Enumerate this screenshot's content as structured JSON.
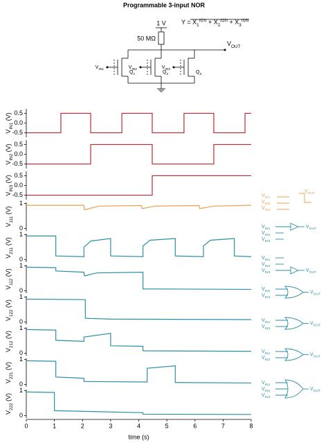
{
  "chart_data": {
    "type": "line",
    "title": "Programmable 3-input NOR",
    "circuit": {
      "supply": "1 V",
      "resistor": "50 MΩ",
      "output": [
        "V",
        "OUT"
      ],
      "equation": [
        "Y = ",
        "X",
        "1",
        "(Q1)",
        " + X",
        "2",
        "(Q2)",
        " + X",
        "3",
        "(Q3)"
      ],
      "inputs": [
        [
          "V",
          "IN1"
        ],
        [
          "V",
          "IN2"
        ],
        [
          "V",
          "IN3"
        ]
      ],
      "transistors": [
        [
          "Q",
          "1"
        ],
        [
          "Q",
          "2"
        ],
        [
          "Q",
          "3"
        ]
      ]
    },
    "x_label": "time (s)",
    "xlim": [
      0,
      8
    ],
    "xticks": [
      0,
      1,
      2,
      3,
      4,
      5,
      6,
      7,
      8
    ],
    "panels": [
      {
        "y_label": [
          "V",
          "IN1",
          " (V)"
        ],
        "ylim": [
          -0.8,
          0.8
        ],
        "yticks": [
          0.5,
          {
            "value": 0,
            "label": "0.0"
          },
          -0.5
        ],
        "series": [
          {
            "color": "#c0282d",
            "x": [
              0,
              1.23,
              1.23,
              2.29,
              2.29,
              3.4,
              3.4,
              4.48,
              4.48,
              5.61,
              5.61,
              6.67,
              6.67,
              7.78,
              7.78,
              8
            ],
            "values": [
              -0.5,
              -0.5,
              0.5,
              0.5,
              -0.5,
              -0.5,
              0.5,
              0.5,
              -0.5,
              -0.5,
              0.5,
              0.5,
              -0.5,
              -0.5,
              0.5,
              0.5
            ]
          }
        ]
      },
      {
        "y_label": [
          "V",
          "IN2",
          " (V)"
        ],
        "ylim": [
          -0.8,
          0.8
        ],
        "yticks": [
          0.5,
          {
            "value": 0,
            "label": "0.0"
          },
          -0.5
        ],
        "series": [
          {
            "color": "#c0282d",
            "x": [
              0,
              2.29,
              2.29,
              4.48,
              4.48,
              6.67,
              6.67,
              8
            ],
            "values": [
              -0.5,
              -0.5,
              0.5,
              0.5,
              -0.5,
              -0.5,
              0.5,
              0.5
            ]
          }
        ]
      },
      {
        "y_label": [
          "V",
          "IN3",
          " (V)"
        ],
        "ylim": [
          -0.8,
          0.8
        ],
        "yticks": [
          0.5,
          {
            "value": 0,
            "label": "0.0"
          },
          -0.5
        ],
        "series": [
          {
            "color": "#c0282d",
            "x": [
              0,
              4.48,
              4.48,
              8
            ],
            "values": [
              -0.5,
              -0.5,
              0.5,
              0.5
            ]
          }
        ]
      },
      {
        "y_label": [
          "V",
          "111",
          " (V)"
        ],
        "ylim": [
          -0.15,
          1.1
        ],
        "yticks": [
          0,
          1
        ],
        "series": [
          {
            "color": "#e8a04a",
            "x": [
              0,
              2.05,
              2.07,
              2.6,
              4.1,
              4.12,
              4.6,
              6.15,
              6.17,
              6.7,
              8
            ],
            "values": [
              0.93,
              0.93,
              0.75,
              0.9,
              0.92,
              0.8,
              0.9,
              0.92,
              0.8,
              0.9,
              0.93
            ]
          }
        ],
        "schematic": {
          "gate": "none",
          "inputs": [
            [
              "V",
              "IN1"
            ],
            [
              "V",
              "IN2"
            ],
            [
              "V",
              "IN3"
            ]
          ],
          "output": [
            "V",
            "OUT"
          ]
        }
      },
      {
        "y_label": [
          "V",
          "211",
          " (V)"
        ],
        "ylim": [
          -0.15,
          1.1
        ],
        "yticks": [
          0,
          1
        ],
        "series": [
          {
            "color": "#2b8ea6",
            "x": [
              0,
              1.05,
              1.05,
              2.05,
              2.05,
              2.3,
              3.0,
              3.0,
              4.15,
              4.15,
              4.4,
              5.3,
              5.3,
              6.3,
              6.3,
              6.55,
              7.4,
              7.4,
              8
            ],
            "values": [
              0.95,
              0.95,
              0.15,
              0.12,
              0.5,
              0.75,
              0.85,
              0.15,
              0.12,
              0.55,
              0.78,
              0.85,
              0.15,
              0.12,
              0.55,
              0.78,
              0.85,
              0.15,
              0.12
            ]
          }
        ],
        "schematic": {
          "gate": "buffer",
          "buffer_input": 0,
          "inputs": [
            [
              "V",
              "IN1"
            ],
            [
              "V",
              "IN2"
            ],
            [
              "V",
              "IN3"
            ]
          ],
          "output": [
            "V",
            "OUT"
          ]
        }
      },
      {
        "y_label": [
          "V",
          "112",
          " (V)"
        ],
        "ylim": [
          -0.15,
          1.1
        ],
        "yticks": [
          0,
          1
        ],
        "series": [
          {
            "color": "#2b8ea6",
            "x": [
              0,
              1.05,
              1.05,
              2.05,
              2.07,
              2.5,
              4.15,
              4.15,
              8
            ],
            "values": [
              0.95,
              0.93,
              0.8,
              0.75,
              0.6,
              0.72,
              0.75,
              0.08,
              0.06
            ]
          }
        ],
        "schematic": {
          "gate": "buffer",
          "buffer_input": 2,
          "inputs": [
            [
              "V",
              "IN1"
            ],
            [
              "V",
              "IN2"
            ],
            [
              "V",
              "IN3"
            ]
          ],
          "output": [
            "V",
            "OUT"
          ]
        }
      },
      {
        "y_label": [
          "V",
          "122",
          " (V)"
        ],
        "ylim": [
          -0.15,
          1.1
        ],
        "yticks": [
          0,
          1
        ],
        "series": [
          {
            "color": "#2b8ea6",
            "x": [
              0,
              2.1,
              2.1,
              3,
              8
            ],
            "values": [
              0.92,
              0.9,
              0.15,
              0.12,
              0.1
            ]
          }
        ],
        "schematic": {
          "gate": "or",
          "inputs": [
            [
              "V",
              "IN2"
            ],
            [
              "V",
              "IN3"
            ]
          ],
          "output": [
            "V",
            "OUT"
          ]
        }
      },
      {
        "y_label": [
          "V",
          "212",
          " (V)"
        ],
        "ylim": [
          -0.15,
          1.1
        ],
        "yticks": [
          0,
          1
        ],
        "series": [
          {
            "color": "#2b8ea6",
            "x": [
              0,
              1.05,
              1.05,
              2.05,
              2.05,
              3.0,
              3.0,
              4.15,
              4.15,
              8
            ],
            "values": [
              0.95,
              0.93,
              0.52,
              0.48,
              0.65,
              0.8,
              0.3,
              0.28,
              0.1,
              0.08
            ]
          }
        ],
        "schematic": {
          "gate": "or",
          "inputs": [
            [
              "V",
              "IN1"
            ],
            [
              "V",
              "IN3"
            ]
          ],
          "output": [
            "V",
            "OUT"
          ]
        }
      },
      {
        "y_label": [
          "V",
          "221",
          " (V)"
        ],
        "ylim": [
          -0.15,
          1.1
        ],
        "yticks": [
          0,
          1
        ],
        "series": [
          {
            "color": "#2b8ea6",
            "x": [
              0,
              1.05,
              1.05,
              2.05,
              2.05,
              4.3,
              4.3,
              5.3,
              5.3,
              8
            ],
            "values": [
              0.95,
              0.93,
              0.3,
              0.25,
              0.12,
              0.1,
              0.65,
              0.75,
              0.08,
              0.06
            ]
          }
        ],
        "schematic": {
          "gate": "or",
          "inputs": [
            [
              "V",
              "IN1"
            ],
            [
              "V",
              "IN2"
            ]
          ],
          "output": [
            "V",
            "OUT"
          ]
        }
      },
      {
        "y_label": [
          "V",
          "222",
          " (V)"
        ],
        "ylim": [
          -0.15,
          1.1
        ],
        "yticks": [
          0,
          1
        ],
        "series": [
          {
            "color": "#2b8ea6",
            "x": [
              0,
              1.0,
              1.0,
              4.15,
              4.15,
              8
            ],
            "values": [
              0.95,
              0.93,
              0.2,
              0.12,
              0.06,
              0.05
            ]
          }
        ],
        "schematic": {
          "gate": "or",
          "inputs": [
            [
              "V",
              "IN1"
            ],
            [
              "V",
              "IN2"
            ],
            [
              "V",
              "IN3"
            ]
          ],
          "output": [
            "V",
            "OUT"
          ]
        }
      }
    ]
  }
}
